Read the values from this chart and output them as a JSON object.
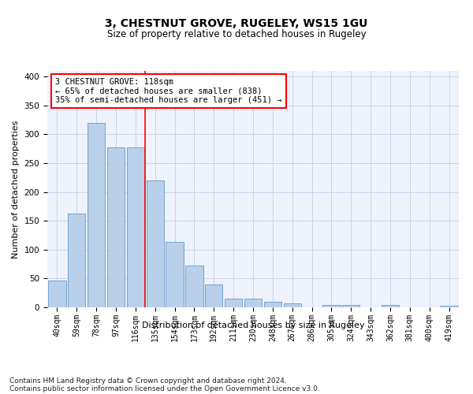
{
  "title": "3, CHESTNUT GROVE, RUGELEY, WS15 1GU",
  "subtitle": "Size of property relative to detached houses in Rugeley",
  "xlabel": "Distribution of detached houses by size in Rugeley",
  "ylabel": "Number of detached properties",
  "categories": [
    "40sqm",
    "59sqm",
    "78sqm",
    "97sqm",
    "116sqm",
    "135sqm",
    "154sqm",
    "173sqm",
    "192sqm",
    "211sqm",
    "230sqm",
    "248sqm",
    "267sqm",
    "286sqm",
    "305sqm",
    "324sqm",
    "343sqm",
    "362sqm",
    "381sqm",
    "400sqm",
    "419sqm"
  ],
  "values": [
    47,
    163,
    320,
    278,
    278,
    220,
    113,
    72,
    39,
    15,
    15,
    9,
    7,
    0,
    4,
    4,
    0,
    4,
    0,
    0,
    3
  ],
  "bar_color": "#b8d0ea",
  "bar_edge_color": "#6699cc",
  "vline_color": "red",
  "vline_pos": 4.5,
  "annotation_text": "3 CHESTNUT GROVE: 118sqm\n← 65% of detached houses are smaller (838)\n35% of semi-detached houses are larger (451) →",
  "annotation_box_color": "white",
  "annotation_box_edge_color": "red",
  "ylim": [
    0,
    410
  ],
  "yticks": [
    0,
    50,
    100,
    150,
    200,
    250,
    300,
    350,
    400
  ],
  "footnote1": "Contains HM Land Registry data © Crown copyright and database right 2024.",
  "footnote2": "Contains public sector information licensed under the Open Government Licence v3.0.",
  "bg_color": "#eef2fb",
  "grid_color": "#c5cde8",
  "title_fontsize": 10,
  "subtitle_fontsize": 8.5,
  "xlabel_fontsize": 8,
  "ylabel_fontsize": 8,
  "tick_fontsize": 7,
  "annotation_fontsize": 7.5,
  "footnote_fontsize": 6.5
}
